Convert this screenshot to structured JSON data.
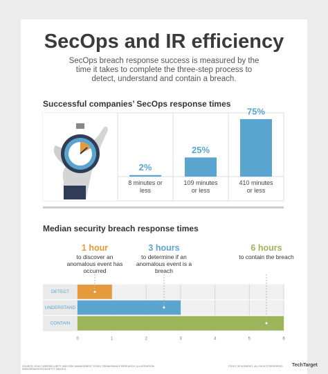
{
  "header": {
    "title": "SecOps and IR efficiency",
    "subtitle": "SecOps breach response success is measured by the time it takes to complete the three-step process to detect, understand and contain a breach."
  },
  "chart_data": [
    {
      "type": "bar",
      "title": "Successful companies’ SecOps response times",
      "categories": [
        "8 minutes or less",
        "109 minutes or less",
        "410 minutes or less"
      ],
      "values": [
        2,
        25,
        75
      ],
      "value_labels": [
        "2%",
        "25%",
        "75%"
      ],
      "color": "#5aa5cf"
    },
    {
      "type": "hbar",
      "title": "Median security breach response times",
      "categories": [
        "DETECT",
        "UNDERSTAND",
        "CONTAIN"
      ],
      "values": [
        1,
        3,
        6
      ],
      "value_labels": [
        "1 hour",
        "3 hours",
        "6 hours"
      ],
      "annotations": [
        "to discover an anomalous event has occurred",
        "to determine if an anomalous event is a breach",
        "to contain the breach"
      ],
      "colors": [
        "#e59a3c",
        "#5aa5cf",
        "#9cb55a"
      ],
      "xlim": [
        0,
        6
      ],
      "xticks": [
        0,
        1,
        2,
        3,
        4,
        5,
        6
      ],
      "grid": true
    }
  ],
  "footer": {
    "source": "SOURCE: 2016 CYBERSECURITY AND RISK MANAGEMENT STUDY; RENAISSANCE RESEARCH; ILLUSTRATION: NONGKRAN/ISTOCK/GETTY IMAGES",
    "copyright": "©2019 TECHTARGET. ALL RIGHTS RESERVED",
    "logo": "TechTarget"
  }
}
